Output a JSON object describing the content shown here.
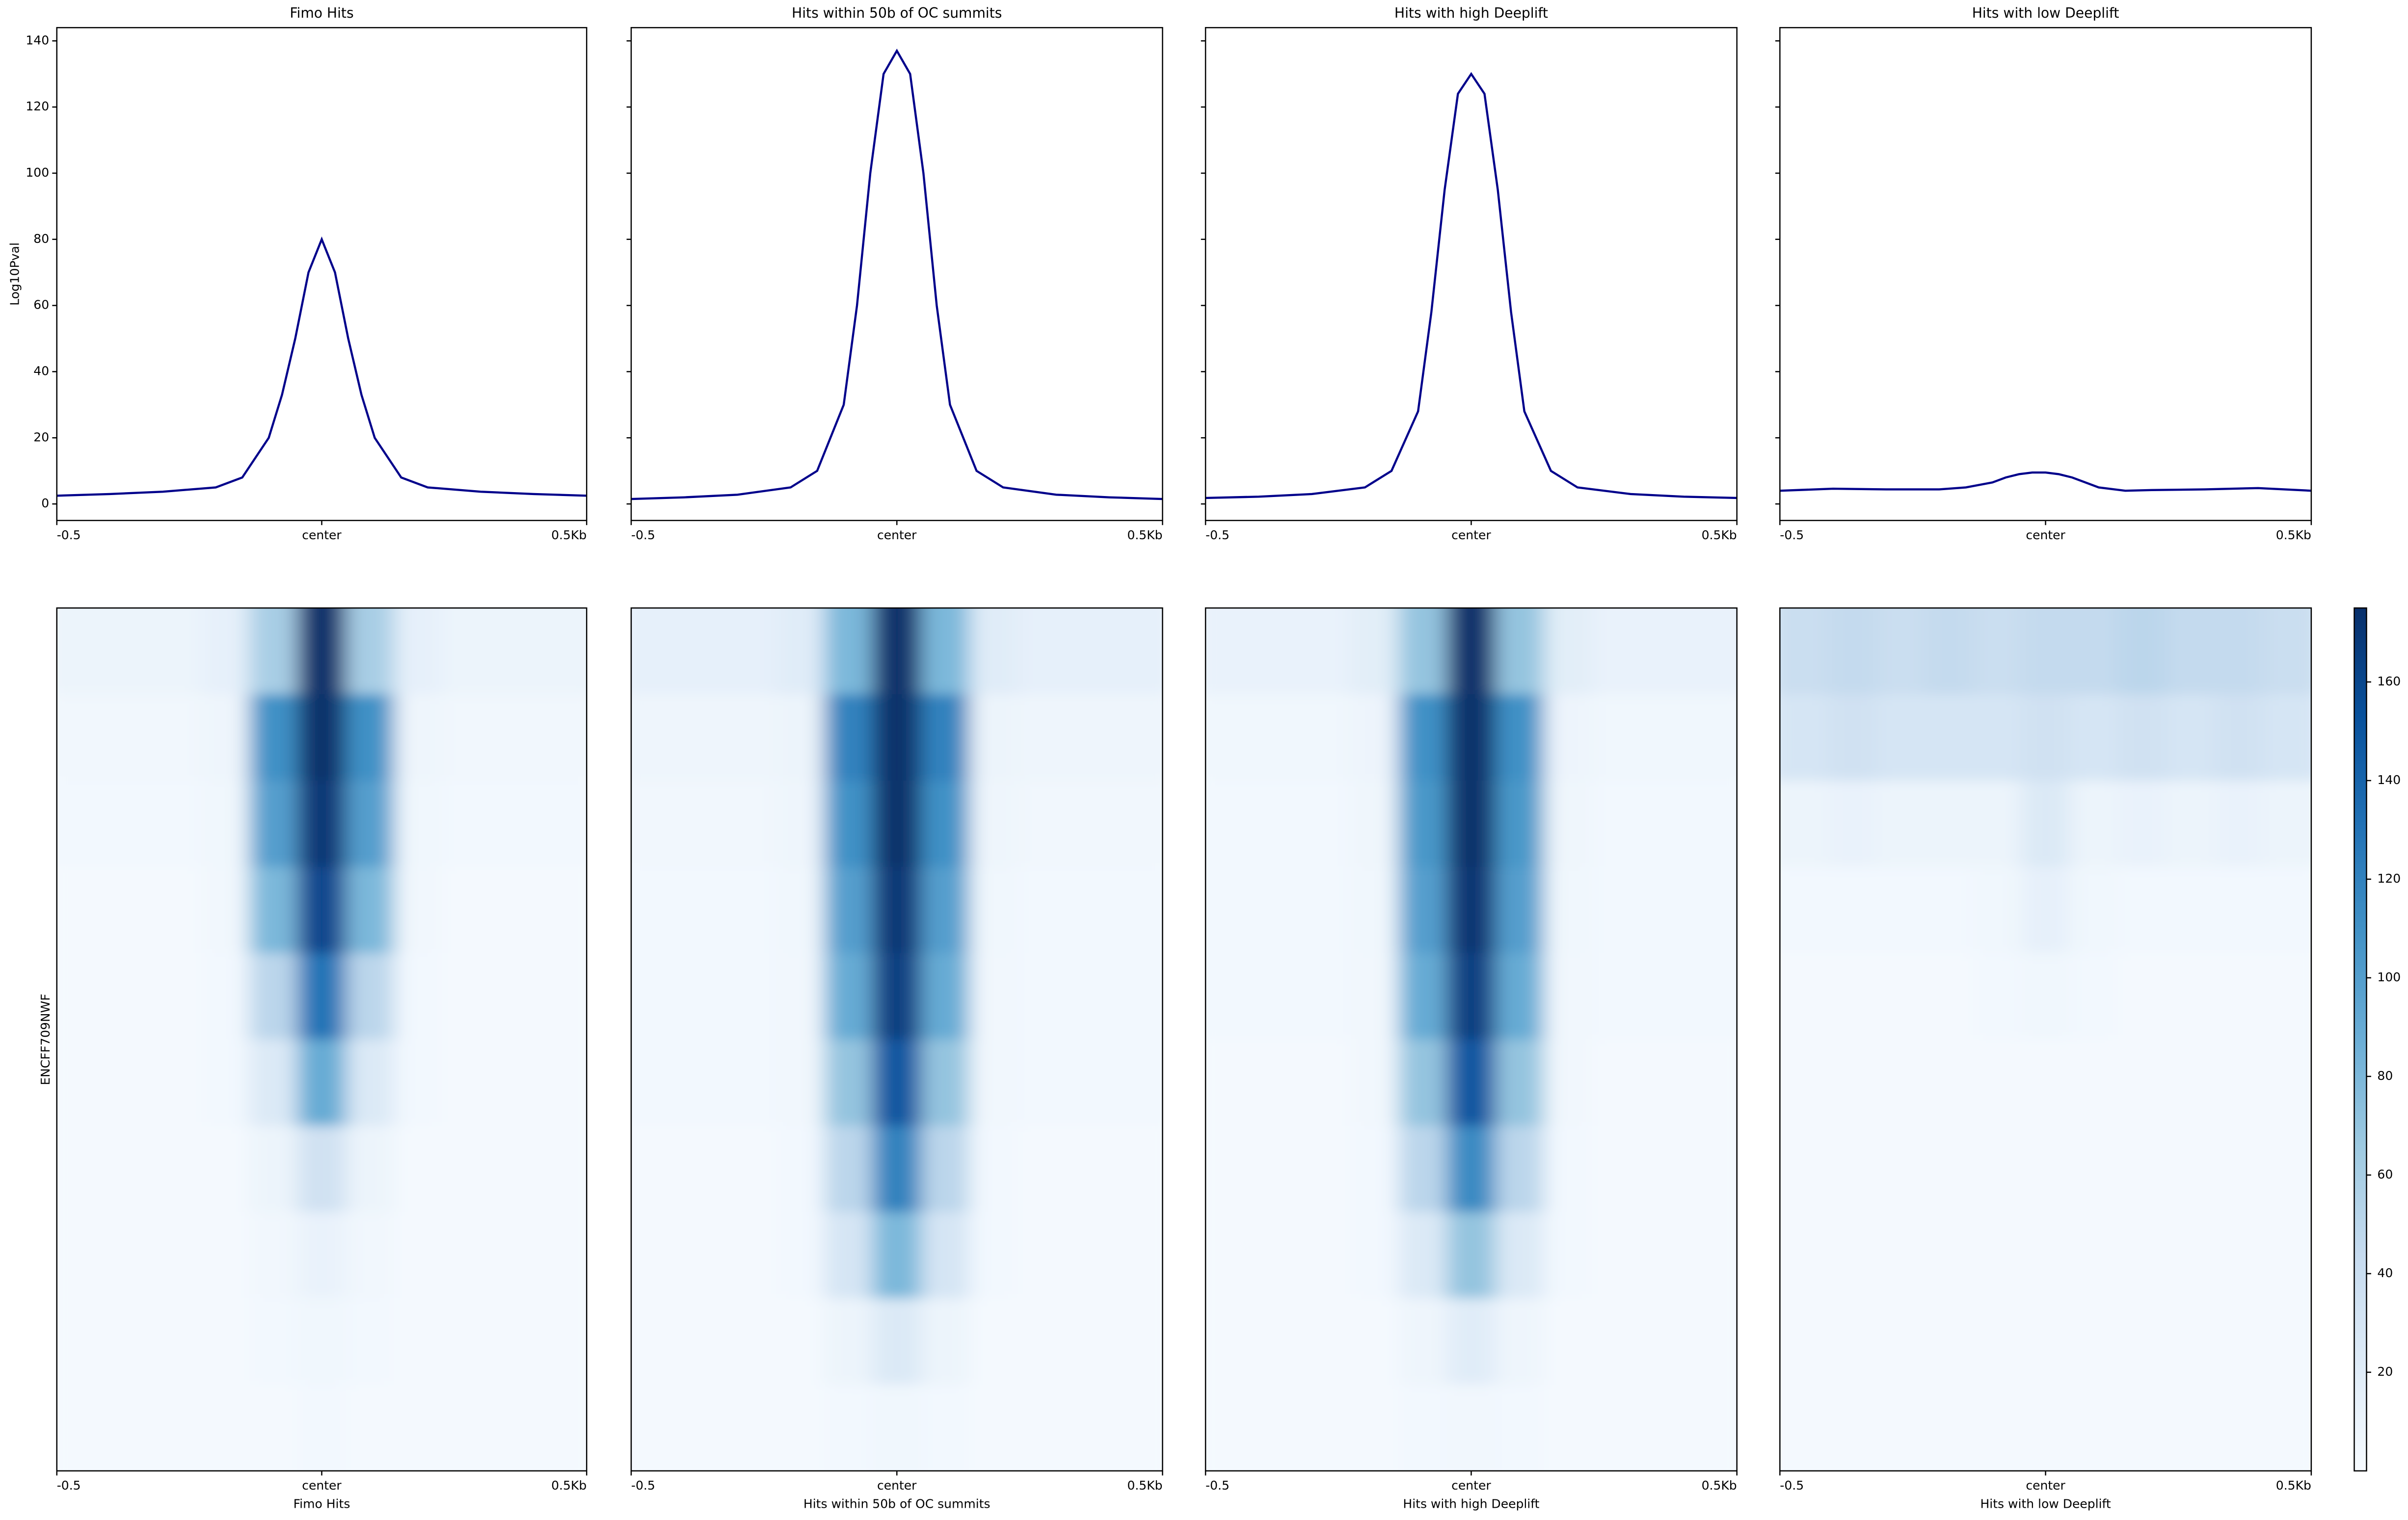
{
  "chart_data": [
    {
      "type": "line",
      "title": "Fimo Hits",
      "ylabel": "Log10Pval",
      "color": "#00008b",
      "x": [
        -0.5,
        -0.4,
        -0.3,
        -0.2,
        -0.15,
        -0.1,
        -0.075,
        -0.05,
        -0.025,
        0,
        0.025,
        0.05,
        0.075,
        0.1,
        0.15,
        0.2,
        0.3,
        0.4,
        0.5
      ],
      "values": [
        2.5,
        3,
        3.7,
        5,
        8,
        20,
        33,
        50,
        70,
        80,
        70,
        50,
        33,
        20,
        8,
        5,
        3.7,
        3,
        2.5
      ],
      "xlim": [
        -0.5,
        0.5
      ],
      "xticks": [
        -0.5,
        {
          "value": 0,
          "label": "center"
        },
        {
          "value": 0.5,
          "label": "0.5Kb"
        }
      ],
      "ylim": [
        -5,
        144
      ],
      "yticks": [
        0,
        20,
        40,
        60,
        80,
        100,
        120,
        140
      ]
    },
    {
      "type": "line",
      "title": "Hits within 50b of OC summits",
      "color": "#00008b",
      "x": [
        -0.5,
        -0.4,
        -0.3,
        -0.2,
        -0.15,
        -0.1,
        -0.075,
        -0.05,
        -0.025,
        0,
        0.025,
        0.05,
        0.075,
        0.1,
        0.15,
        0.2,
        0.3,
        0.4,
        0.5
      ],
      "values": [
        1.5,
        2,
        2.8,
        5,
        10,
        30,
        60,
        100,
        130,
        137,
        130,
        100,
        60,
        30,
        10,
        5,
        2.8,
        2,
        1.5
      ],
      "xlim": [
        -0.5,
        0.5
      ],
      "xticks": [
        -0.5,
        {
          "value": 0,
          "label": "center"
        },
        {
          "value": 0.5,
          "label": "0.5Kb"
        }
      ],
      "ylim": [
        -5,
        144
      ]
    },
    {
      "type": "line",
      "title": "Hits with high Deeplift",
      "color": "#00008b",
      "x": [
        -0.5,
        -0.4,
        -0.3,
        -0.2,
        -0.15,
        -0.1,
        -0.075,
        -0.05,
        -0.025,
        0,
        0.025,
        0.05,
        0.075,
        0.1,
        0.15,
        0.2,
        0.3,
        0.4,
        0.5
      ],
      "values": [
        1.8,
        2.2,
        3,
        5,
        10,
        28,
        58,
        95,
        124,
        130,
        124,
        95,
        58,
        28,
        10,
        5,
        3,
        2.2,
        1.8
      ],
      "xlim": [
        -0.5,
        0.5
      ],
      "xticks": [
        -0.5,
        {
          "value": 0,
          "label": "center"
        },
        {
          "value": 0.5,
          "label": "0.5Kb"
        }
      ],
      "ylim": [
        -5,
        144
      ]
    },
    {
      "type": "line",
      "title": "Hits with low Deeplift",
      "color": "#00008b",
      "x": [
        -0.5,
        -0.4,
        -0.3,
        -0.2,
        -0.15,
        -0.1,
        -0.075,
        -0.05,
        -0.025,
        0,
        0.025,
        0.05,
        0.075,
        0.1,
        0.15,
        0.2,
        0.3,
        0.4,
        0.5
      ],
      "values": [
        4,
        4.6,
        4.4,
        4.4,
        5,
        6.5,
        8,
        9,
        9.5,
        9.5,
        9,
        8,
        6.5,
        5,
        4,
        4.2,
        4.4,
        4.8,
        4
      ],
      "xlim": [
        -0.5,
        0.5
      ],
      "xticks": [
        -0.5,
        {
          "value": 0,
          "label": "center"
        },
        {
          "value": 0.5,
          "label": "0.5Kb"
        }
      ],
      "ylim": [
        -5,
        144
      ]
    },
    {
      "type": "heatmap",
      "xlabel": "Fimo Hits",
      "ylabel": "ENCFF709NWF",
      "xlim": [
        -0.5,
        0.5
      ],
      "xticks": [
        -0.5,
        {
          "value": 0,
          "label": "center"
        },
        {
          "value": 0.5,
          "label": "0.5Kb"
        }
      ],
      "z": [
        [
          10,
          10,
          10,
          15,
          60,
          175,
          60,
          15,
          10,
          10,
          10
        ],
        [
          5,
          5,
          5,
          8,
          110,
          175,
          110,
          8,
          5,
          5,
          5
        ],
        [
          4,
          4,
          4,
          6,
          100,
          170,
          100,
          6,
          4,
          4,
          4
        ],
        [
          3,
          3,
          3,
          5,
          80,
          160,
          80,
          5,
          3,
          3,
          3
        ],
        [
          3,
          3,
          3,
          4,
          50,
          130,
          50,
          4,
          3,
          3,
          3
        ],
        [
          3,
          3,
          3,
          4,
          25,
          90,
          25,
          4,
          3,
          3,
          3
        ],
        [
          3,
          3,
          3,
          3,
          10,
          35,
          10,
          3,
          3,
          3,
          3
        ],
        [
          3,
          3,
          3,
          3,
          5,
          12,
          5,
          3,
          3,
          3,
          3
        ],
        [
          3,
          3,
          3,
          3,
          4,
          6,
          4,
          3,
          3,
          3,
          3
        ],
        [
          3,
          3,
          3,
          3,
          3,
          4,
          3,
          3,
          3,
          3,
          3
        ]
      ]
    },
    {
      "type": "heatmap",
      "xlabel": "Hits within 50b of OC summits",
      "xlim": [
        -0.5,
        0.5
      ],
      "xticks": [
        -0.5,
        {
          "value": 0,
          "label": "center"
        },
        {
          "value": 0.5,
          "label": "0.5Kb"
        }
      ],
      "z": [
        [
          15,
          15,
          15,
          20,
          80,
          175,
          80,
          20,
          15,
          15,
          15
        ],
        [
          8,
          8,
          8,
          10,
          120,
          175,
          120,
          10,
          8,
          8,
          8
        ],
        [
          5,
          5,
          5,
          8,
          110,
          175,
          110,
          8,
          5,
          5,
          5
        ],
        [
          4,
          4,
          4,
          6,
          100,
          170,
          100,
          6,
          4,
          4,
          4
        ],
        [
          4,
          4,
          4,
          5,
          90,
          165,
          90,
          5,
          4,
          4,
          4
        ],
        [
          4,
          4,
          4,
          5,
          70,
          150,
          70,
          5,
          4,
          4,
          4
        ],
        [
          3,
          3,
          3,
          4,
          50,
          120,
          50,
          4,
          3,
          3,
          3
        ],
        [
          3,
          3,
          3,
          4,
          30,
          80,
          30,
          4,
          3,
          3,
          3
        ],
        [
          3,
          3,
          3,
          3,
          10,
          25,
          10,
          3,
          3,
          3,
          3
        ],
        [
          3,
          3,
          3,
          3,
          4,
          6,
          4,
          3,
          3,
          3,
          3
        ]
      ]
    },
    {
      "type": "heatmap",
      "xlabel": "Hits with high Deeplift",
      "xlim": [
        -0.5,
        0.5
      ],
      "xticks": [
        -0.5,
        {
          "value": 0,
          "label": "center"
        },
        {
          "value": 0.5,
          "label": "0.5Kb"
        }
      ],
      "z": [
        [
          12,
          12,
          12,
          18,
          70,
          175,
          70,
          18,
          12,
          12,
          12
        ],
        [
          6,
          6,
          6,
          9,
          110,
          175,
          110,
          9,
          6,
          6,
          6
        ],
        [
          4,
          4,
          4,
          7,
          105,
          175,
          105,
          7,
          4,
          4,
          4
        ],
        [
          4,
          4,
          4,
          6,
          100,
          172,
          100,
          6,
          4,
          4,
          4
        ],
        [
          4,
          4,
          4,
          5,
          90,
          165,
          90,
          5,
          4,
          4,
          4
        ],
        [
          3,
          3,
          3,
          5,
          70,
          150,
          70,
          5,
          3,
          3,
          3
        ],
        [
          3,
          3,
          3,
          4,
          50,
          115,
          50,
          4,
          3,
          3,
          3
        ],
        [
          3,
          3,
          3,
          4,
          25,
          70,
          25,
          4,
          3,
          3,
          3
        ],
        [
          3,
          3,
          3,
          3,
          8,
          20,
          8,
          3,
          3,
          3,
          3
        ],
        [
          3,
          3,
          3,
          3,
          4,
          5,
          4,
          3,
          3,
          3,
          3
        ]
      ]
    },
    {
      "type": "heatmap",
      "xlabel": "Hits with low Deeplift",
      "xlim": [
        -0.5,
        0.5
      ],
      "xticks": [
        -0.5,
        {
          "value": 0,
          "label": "center"
        },
        {
          "value": 0.5,
          "label": "0.5Kb"
        }
      ],
      "z": [
        [
          40,
          45,
          40,
          45,
          40,
          45,
          45,
          50,
          45,
          45,
          40
        ],
        [
          30,
          35,
          30,
          30,
          30,
          35,
          30,
          35,
          30,
          35,
          30
        ],
        [
          10,
          12,
          10,
          10,
          10,
          25,
          10,
          12,
          10,
          12,
          10
        ],
        [
          4,
          4,
          4,
          4,
          6,
          15,
          6,
          4,
          4,
          4,
          4
        ],
        [
          3,
          3,
          3,
          3,
          4,
          6,
          4,
          3,
          3,
          3,
          3
        ],
        [
          3,
          3,
          3,
          3,
          3,
          3,
          3,
          3,
          3,
          3,
          3
        ],
        [
          3,
          3,
          3,
          3,
          3,
          3,
          3,
          3,
          3,
          3,
          3
        ],
        [
          3,
          3,
          3,
          3,
          3,
          3,
          3,
          3,
          3,
          3,
          3
        ],
        [
          3,
          3,
          3,
          3,
          3,
          3,
          3,
          3,
          3,
          3,
          3
        ],
        [
          3,
          3,
          3,
          3,
          3,
          3,
          3,
          3,
          3,
          3,
          3
        ]
      ],
      "colorbar": {
        "zlim": [
          0,
          175
        ],
        "ticks": [
          20,
          40,
          60,
          80,
          100,
          120,
          140,
          160
        ],
        "colormap": [
          "#f7fbff",
          "#deebf7",
          "#c6dbef",
          "#9ecae1",
          "#6baed6",
          "#4292c6",
          "#2171b5",
          "#08519c",
          "#08306b"
        ]
      }
    }
  ]
}
